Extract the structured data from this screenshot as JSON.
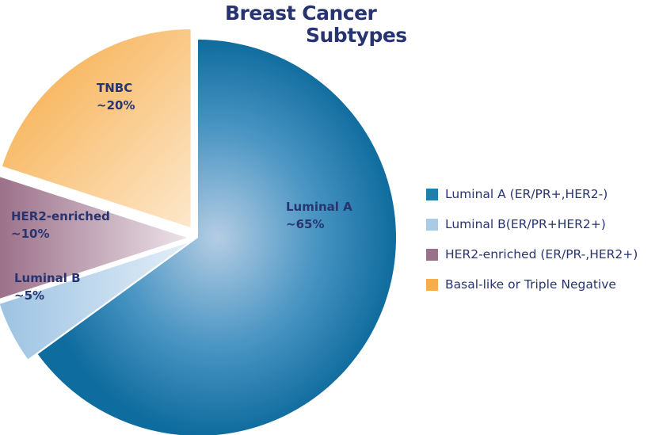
{
  "chart_data": {
    "type": "pie",
    "title": [
      "Breast Cancer",
      "Subtypes"
    ],
    "slices": [
      {
        "label": "Luminal A",
        "value_label": "~65%",
        "value": 65,
        "legend": "Luminal A (ER/PR+,HER2-)",
        "color": "#1e7eac"
      },
      {
        "label": "Luminal B",
        "value_label": "~5%",
        "value": 5,
        "legend": "Luminal B(ER/PR+HER2+)",
        "color": "#a9cbe6"
      },
      {
        "label": "HER2-enriched",
        "value_label": "~10%",
        "value": 10,
        "legend": "HER2-enriched (ER/PR-,HER2+)",
        "color": "#9b7189"
      },
      {
        "label": "TNBC",
        "value_label": "~20%",
        "value": 20,
        "legend": "Basal-like or Triple Negative",
        "color": "#f7ad4c"
      }
    ],
    "legend_position": "right"
  }
}
